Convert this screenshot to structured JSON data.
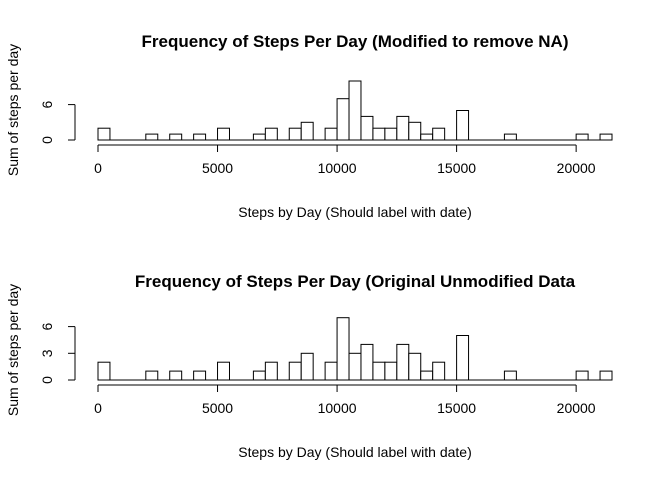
{
  "chart_data": [
    {
      "type": "bar",
      "title": "Frequency of Steps Per Day (Modified to remove NA)",
      "xlabel": "Steps by Day (Should label with date)",
      "ylabel": "Sum of steps per day",
      "xlim": [
        0,
        21500
      ],
      "ylim": [
        0,
        10
      ],
      "xticks": [
        0,
        5000,
        10000,
        15000,
        20000
      ],
      "yticks": [
        0,
        6
      ],
      "bin_width": 500,
      "bins": [
        {
          "x0": 0,
          "x1": 500,
          "count": 2
        },
        {
          "x0": 2000,
          "x1": 2500,
          "count": 1
        },
        {
          "x0": 3000,
          "x1": 3500,
          "count": 1
        },
        {
          "x0": 4000,
          "x1": 4500,
          "count": 1
        },
        {
          "x0": 5000,
          "x1": 5500,
          "count": 2
        },
        {
          "x0": 6500,
          "x1": 7000,
          "count": 1
        },
        {
          "x0": 7000,
          "x1": 7500,
          "count": 2
        },
        {
          "x0": 8000,
          "x1": 8500,
          "count": 2
        },
        {
          "x0": 8500,
          "x1": 9000,
          "count": 3
        },
        {
          "x0": 9500,
          "x1": 10000,
          "count": 2
        },
        {
          "x0": 10000,
          "x1": 10500,
          "count": 7
        },
        {
          "x0": 10500,
          "x1": 11000,
          "count": 10
        },
        {
          "x0": 11000,
          "x1": 11500,
          "count": 4
        },
        {
          "x0": 11500,
          "x1": 12000,
          "count": 2
        },
        {
          "x0": 12000,
          "x1": 12500,
          "count": 2
        },
        {
          "x0": 12500,
          "x1": 13000,
          "count": 4
        },
        {
          "x0": 13000,
          "x1": 13500,
          "count": 3
        },
        {
          "x0": 13500,
          "x1": 14000,
          "count": 1
        },
        {
          "x0": 14000,
          "x1": 14500,
          "count": 2
        },
        {
          "x0": 15000,
          "x1": 15500,
          "count": 5
        },
        {
          "x0": 17000,
          "x1": 17500,
          "count": 1
        },
        {
          "x0": 20000,
          "x1": 20500,
          "count": 1
        },
        {
          "x0": 21000,
          "x1": 21500,
          "count": 1
        }
      ]
    },
    {
      "type": "bar",
      "title": "Frequency of Steps Per Day (Original Unmodified Data",
      "xlabel": "Steps by Day (Should label with date)",
      "ylabel": "Sum of steps per day",
      "xlim": [
        0,
        21500
      ],
      "ylim": [
        0,
        7
      ],
      "xticks": [
        0,
        5000,
        10000,
        15000,
        20000
      ],
      "yticks": [
        0,
        3,
        6
      ],
      "bin_width": 500,
      "bins": [
        {
          "x0": 0,
          "x1": 500,
          "count": 2
        },
        {
          "x0": 2000,
          "x1": 2500,
          "count": 1
        },
        {
          "x0": 3000,
          "x1": 3500,
          "count": 1
        },
        {
          "x0": 4000,
          "x1": 4500,
          "count": 1
        },
        {
          "x0": 5000,
          "x1": 5500,
          "count": 2
        },
        {
          "x0": 6500,
          "x1": 7000,
          "count": 1
        },
        {
          "x0": 7000,
          "x1": 7500,
          "count": 2
        },
        {
          "x0": 8000,
          "x1": 8500,
          "count": 2
        },
        {
          "x0": 8500,
          "x1": 9000,
          "count": 3
        },
        {
          "x0": 9500,
          "x1": 10000,
          "count": 2
        },
        {
          "x0": 10000,
          "x1": 10500,
          "count": 7
        },
        {
          "x0": 10500,
          "x1": 11000,
          "count": 3
        },
        {
          "x0": 11000,
          "x1": 11500,
          "count": 4
        },
        {
          "x0": 11500,
          "x1": 12000,
          "count": 2
        },
        {
          "x0": 12000,
          "x1": 12500,
          "count": 2
        },
        {
          "x0": 12500,
          "x1": 13000,
          "count": 4
        },
        {
          "x0": 13000,
          "x1": 13500,
          "count": 3
        },
        {
          "x0": 13500,
          "x1": 14000,
          "count": 1
        },
        {
          "x0": 14000,
          "x1": 14500,
          "count": 2
        },
        {
          "x0": 15000,
          "x1": 15500,
          "count": 5
        },
        {
          "x0": 17000,
          "x1": 17500,
          "count": 1
        },
        {
          "x0": 20000,
          "x1": 20500,
          "count": 1
        },
        {
          "x0": 21000,
          "x1": 21500,
          "count": 1
        }
      ]
    }
  ]
}
